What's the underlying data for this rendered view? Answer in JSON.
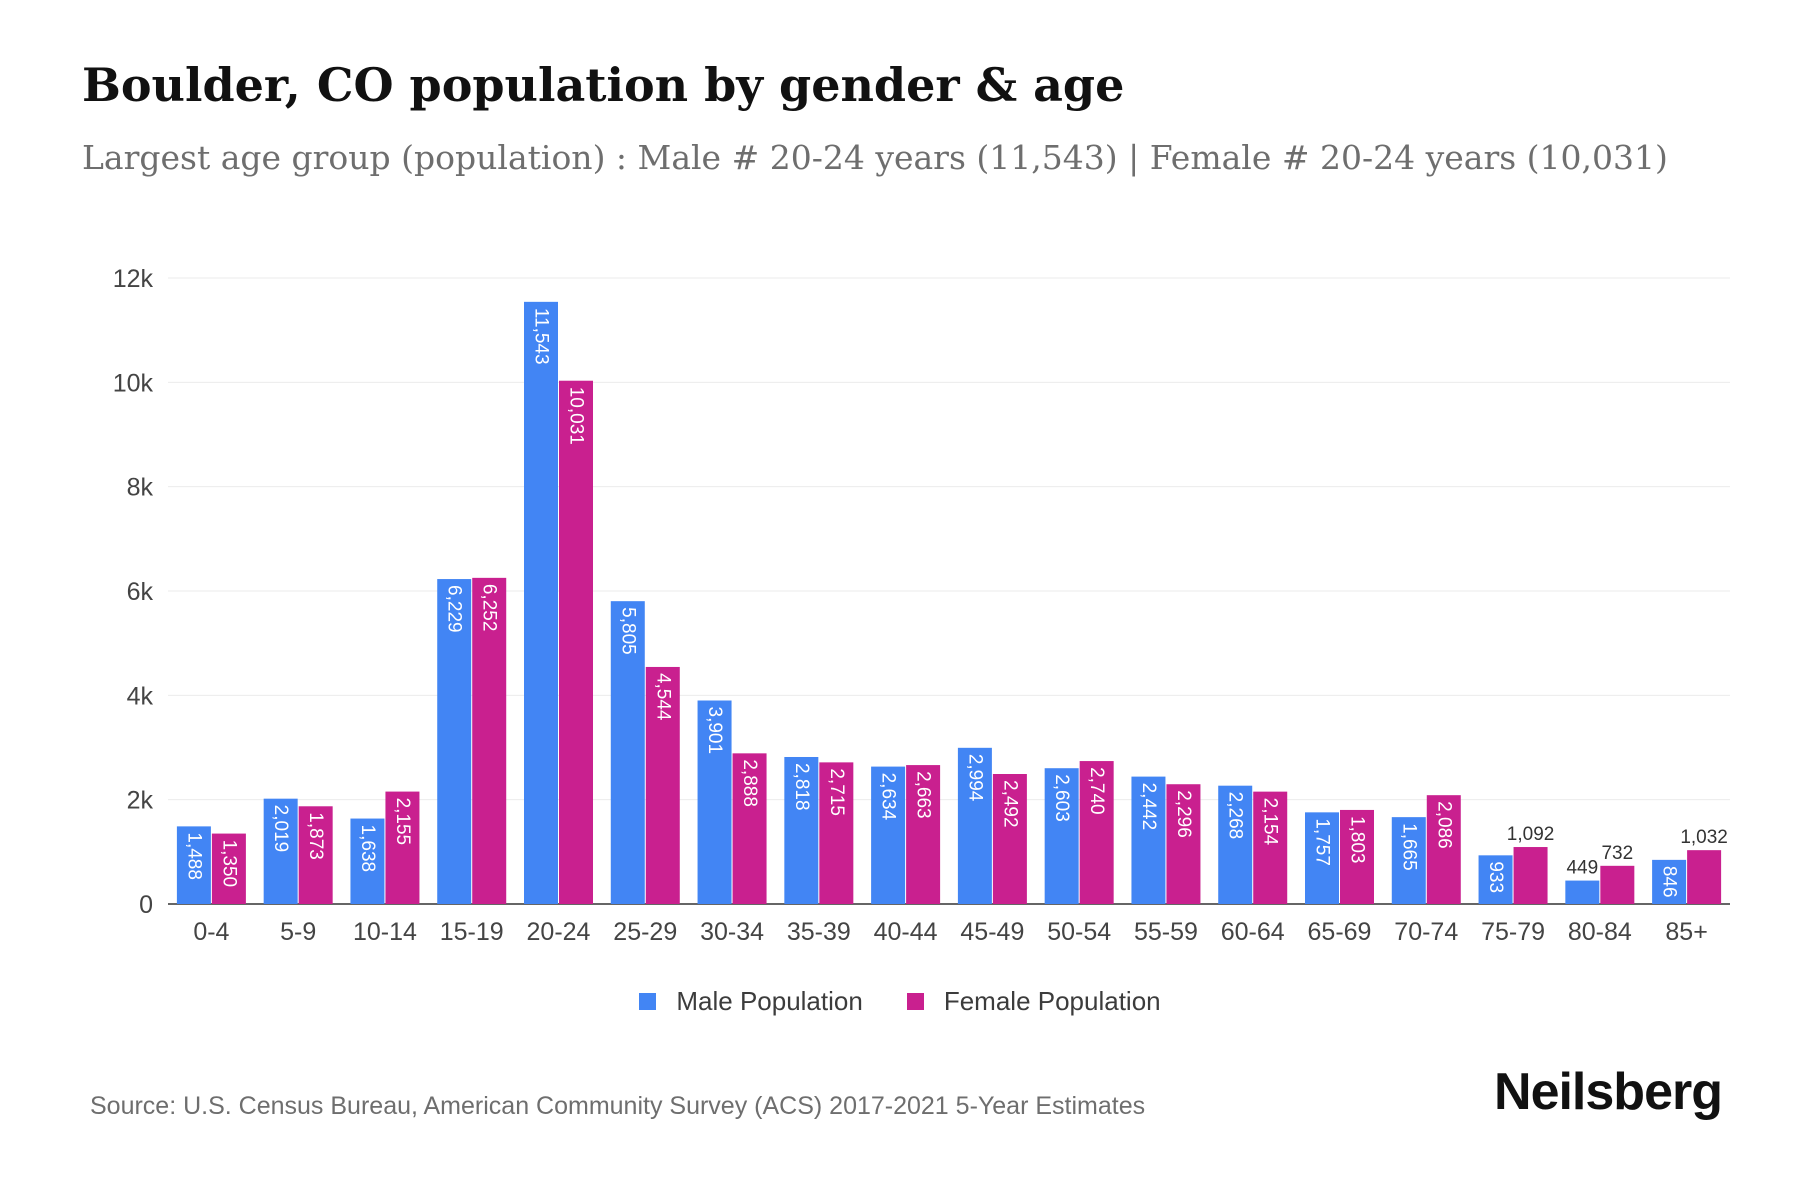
{
  "title": "Boulder, CO population by gender & age",
  "subtitle": "Largest age group (population) : Male # 20-24 years (11,543) | Female # 20-24 years (10,031)",
  "source": "Source: U.S. Census Bureau, American Community Survey (ACS) 2017-2021 5-Year Estimates",
  "brand": "Neilsberg",
  "colors": {
    "male": "#4285f4",
    "female": "#c9208f"
  },
  "chart_data": {
    "type": "bar",
    "title": "Boulder, CO population by gender & age",
    "categories": [
      "0-4",
      "5-9",
      "10-14",
      "15-19",
      "20-24",
      "25-29",
      "30-34",
      "35-39",
      "40-44",
      "45-49",
      "50-54",
      "55-59",
      "60-64",
      "65-69",
      "70-74",
      "75-79",
      "80-84",
      "85+"
    ],
    "series": [
      {
        "name": "Male Population",
        "values": [
          1488,
          2019,
          1638,
          6229,
          11543,
          5805,
          3901,
          2818,
          2634,
          2994,
          2603,
          2442,
          2268,
          1757,
          1665,
          933,
          449,
          846
        ],
        "labels": [
          "1,488",
          "2,019",
          "1,638",
          "6,229",
          "11,543",
          "5,805",
          "3,901",
          "2,818",
          "2,634",
          "2,994",
          "2,603",
          "2,442",
          "2,268",
          "1,757",
          "1,665",
          "933",
          "449",
          "846"
        ]
      },
      {
        "name": "Female Population",
        "values": [
          1350,
          1873,
          2155,
          6252,
          10031,
          4544,
          2888,
          2715,
          2663,
          2492,
          2740,
          2296,
          2154,
          1803,
          2086,
          1092,
          732,
          1032
        ],
        "labels": [
          "1,350",
          "1,873",
          "2,155",
          "6,252",
          "10,031",
          "4,544",
          "2,888",
          "2,715",
          "2,663",
          "2,492",
          "2,740",
          "2,296",
          "2,154",
          "1,803",
          "2,086",
          "1,092",
          "732",
          "1,032"
        ]
      }
    ],
    "ylim": [
      0,
      12000
    ],
    "yticks": [
      0,
      2000,
      4000,
      6000,
      8000,
      10000,
      12000
    ],
    "ytick_labels": [
      "0",
      "2k",
      "4k",
      "6k",
      "8k",
      "10k",
      "12k"
    ],
    "grid": true,
    "legend_position": "bottom"
  }
}
